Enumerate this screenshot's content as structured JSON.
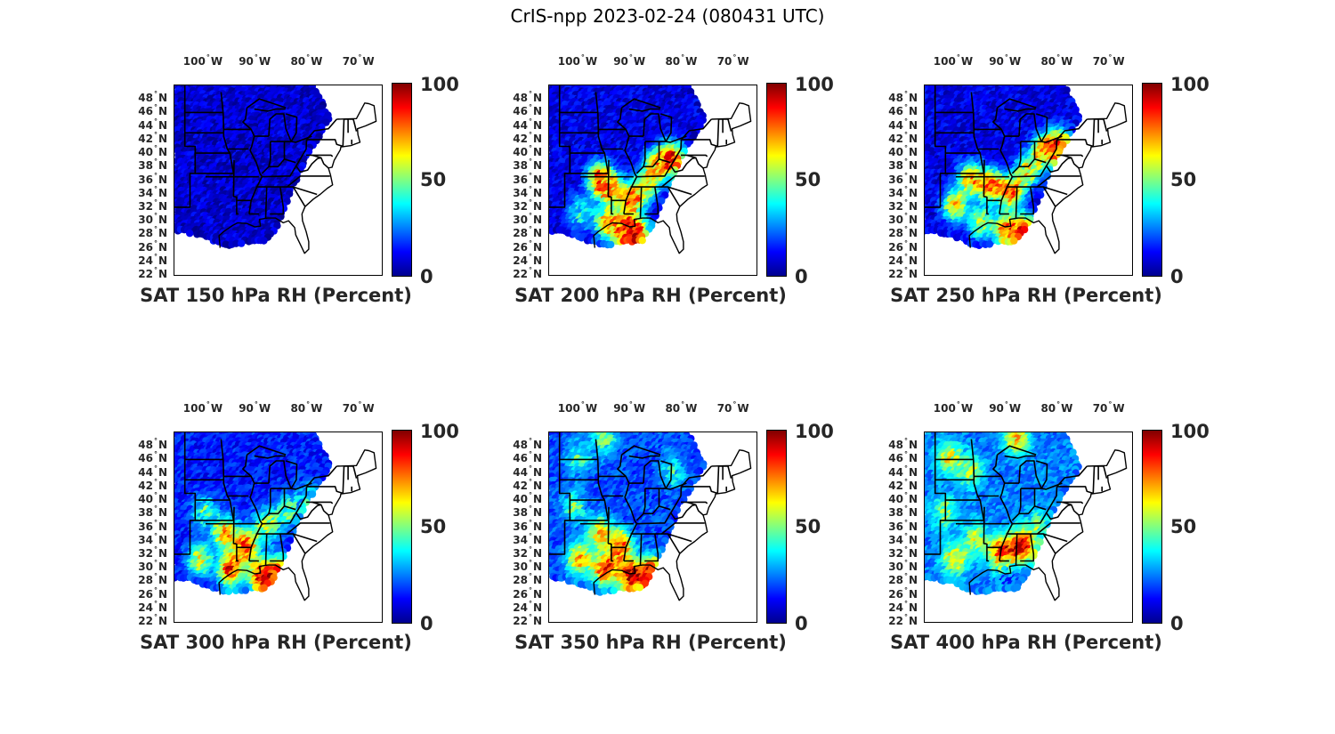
{
  "figure_title": "CrIS-npp 2023-02-24 (080431 UTC)",
  "colormap": "jet",
  "axes": {
    "lon_ticks": [
      "100",
      "90",
      "80",
      "70"
    ],
    "lon_suffix": "W",
    "lat_ticks": [
      "48",
      "46",
      "44",
      "42",
      "40",
      "38",
      "36",
      "34",
      "32",
      "30",
      "28",
      "26",
      "24",
      "22"
    ],
    "lat_suffix": "N",
    "lon_range": [
      -106,
      -66
    ],
    "lat_range": [
      22,
      50
    ]
  },
  "colorbar": {
    "min": 0,
    "mid": 50,
    "max": 100,
    "tick_labels": [
      "100",
      "50",
      "0"
    ]
  },
  "panels": [
    {
      "id": "150",
      "title": "SAT 150 hPa RH (Percent)"
    },
    {
      "id": "200",
      "title": "SAT 200 hPa RH (Percent)"
    },
    {
      "id": "250",
      "title": "SAT 250 hPa RH (Percent)"
    },
    {
      "id": "300",
      "title": "SAT 300 hPa RH (Percent)"
    },
    {
      "id": "350",
      "title": "SAT 350 hPa RH (Percent)"
    },
    {
      "id": "400",
      "title": "SAT 400 hPa RH (Percent)"
    }
  ],
  "chart_data": [
    {
      "type": "scatter",
      "title": "SAT 150 hPa RH (Percent)",
      "variable": "RH",
      "units": "Percent",
      "pressure_hpa": 150,
      "value_range": [
        0,
        100
      ],
      "dominant_value": 8,
      "regions": []
    },
    {
      "type": "scatter",
      "title": "SAT 200 hPa RH (Percent)",
      "variable": "RH",
      "units": "Percent",
      "pressure_hpa": 200,
      "value_range": [
        0,
        100
      ],
      "dominant_value": 10,
      "regions": [
        {
          "lon": -96,
          "lat": 36,
          "rh": 80
        },
        {
          "lon": -94,
          "lat": 34.5,
          "rh": 65
        },
        {
          "lon": -90,
          "lat": 33,
          "rh": 75
        },
        {
          "lon": -87,
          "lat": 35,
          "rh": 55
        },
        {
          "lon": -85,
          "lat": 38,
          "rh": 70
        },
        {
          "lon": -82,
          "lat": 39,
          "rh": 85
        },
        {
          "lon": -95,
          "lat": 29.5,
          "rh": 60
        },
        {
          "lon": -92,
          "lat": 28.5,
          "rh": 80
        },
        {
          "lon": -89,
          "lat": 28,
          "rh": 90
        },
        {
          "lon": -100,
          "lat": 31,
          "rh": 40
        }
      ]
    },
    {
      "type": "scatter",
      "title": "SAT 250 hPa RH (Percent)",
      "variable": "RH",
      "units": "Percent",
      "pressure_hpa": 250,
      "value_range": [
        0,
        100
      ],
      "dominant_value": 10,
      "regions": [
        {
          "lon": -97,
          "lat": 36,
          "rh": 70
        },
        {
          "lon": -93,
          "lat": 35,
          "rh": 80
        },
        {
          "lon": -89,
          "lat": 34,
          "rh": 75
        },
        {
          "lon": -86,
          "lat": 37,
          "rh": 60
        },
        {
          "lon": -83,
          "lat": 40,
          "rh": 70
        },
        {
          "lon": -80,
          "lat": 41,
          "rh": 85
        },
        {
          "lon": -100,
          "lat": 32,
          "rh": 65
        },
        {
          "lon": -95,
          "lat": 29.5,
          "rh": 55
        },
        {
          "lon": -90,
          "lat": 28.5,
          "rh": 80
        },
        {
          "lon": -86,
          "lat": 28,
          "rh": 90
        }
      ]
    },
    {
      "type": "scatter",
      "title": "SAT 300 hPa RH (Percent)",
      "variable": "RH",
      "units": "Percent",
      "pressure_hpa": 300,
      "value_range": [
        0,
        100
      ],
      "dominant_value": 15,
      "regions": [
        {
          "lon": -100,
          "lat": 38,
          "rh": 45
        },
        {
          "lon": -96,
          "lat": 35,
          "rh": 70
        },
        {
          "lon": -92,
          "lat": 33,
          "rh": 80
        },
        {
          "lon": -88,
          "lat": 36,
          "rh": 55
        },
        {
          "lon": -84,
          "lat": 38,
          "rh": 45
        },
        {
          "lon": -101,
          "lat": 31,
          "rh": 60
        },
        {
          "lon": -95,
          "lat": 29.5,
          "rh": 85
        },
        {
          "lon": -89,
          "lat": 28.5,
          "rh": 95
        },
        {
          "lon": -85,
          "lat": 29,
          "rh": 90
        },
        {
          "lon": -80,
          "lat": 40,
          "rh": 35
        }
      ]
    },
    {
      "type": "scatter",
      "title": "SAT 350 hPa RH (Percent)",
      "variable": "RH",
      "units": "Percent",
      "pressure_hpa": 350,
      "value_range": [
        0,
        100
      ],
      "dominant_value": 20,
      "regions": [
        {
          "lon": -100,
          "lat": 46,
          "rh": 45
        },
        {
          "lon": -95,
          "lat": 49,
          "rh": 50
        },
        {
          "lon": -101,
          "lat": 39,
          "rh": 45
        },
        {
          "lon": -96,
          "lat": 35,
          "rh": 65
        },
        {
          "lon": -92,
          "lat": 33,
          "rh": 80
        },
        {
          "lon": -100,
          "lat": 31,
          "rh": 70
        },
        {
          "lon": -95,
          "lat": 29.5,
          "rh": 85
        },
        {
          "lon": -90,
          "lat": 28.5,
          "rh": 95
        },
        {
          "lon": -86,
          "lat": 29,
          "rh": 90
        },
        {
          "lon": -82,
          "lat": 44,
          "rh": 40
        }
      ]
    },
    {
      "type": "scatter",
      "title": "SAT 400 hPa RH (Percent)",
      "variable": "RH",
      "units": "Percent",
      "pressure_hpa": 400,
      "value_range": [
        0,
        100
      ],
      "dominant_value": 25,
      "regions": [
        {
          "lon": -101,
          "lat": 46,
          "rh": 60
        },
        {
          "lon": -97,
          "lat": 44,
          "rh": 55
        },
        {
          "lon": -88,
          "lat": 49,
          "rh": 70
        },
        {
          "lon": -102,
          "lat": 38,
          "rh": 50
        },
        {
          "lon": -96,
          "lat": 34,
          "rh": 55
        },
        {
          "lon": -91,
          "lat": 32,
          "rh": 90
        },
        {
          "lon": -87,
          "lat": 33,
          "rh": 95
        },
        {
          "lon": -100,
          "lat": 31,
          "rh": 65
        },
        {
          "lon": -90,
          "lat": 28.5,
          "rh": 20
        },
        {
          "lon": -84,
          "lat": 36,
          "rh": 45
        }
      ]
    }
  ]
}
